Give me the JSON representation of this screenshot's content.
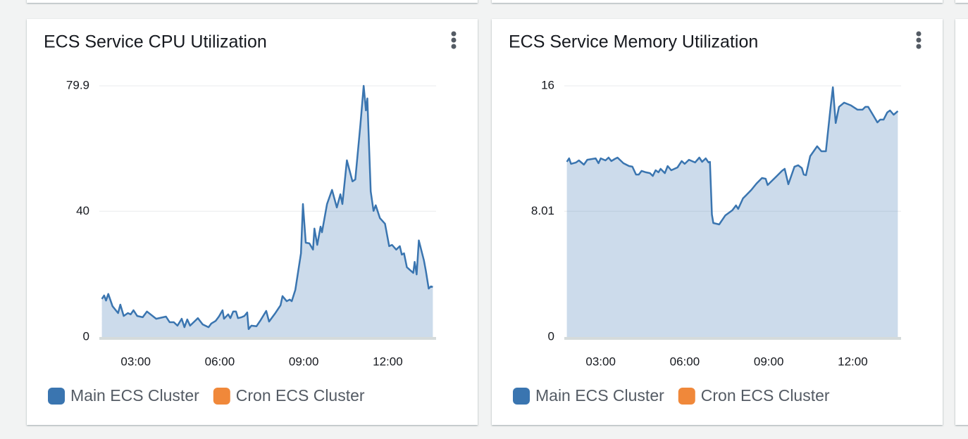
{
  "chart_data": [
    {
      "type": "area",
      "title": "ECS Service CPU Utilization",
      "xlim": [
        1.7,
        13.7
      ],
      "xticks": [
        {
          "value": 3,
          "label": "03:00"
        },
        {
          "value": 6,
          "label": "06:00"
        },
        {
          "value": 9,
          "label": "09:00"
        },
        {
          "value": 12,
          "label": "12:00"
        }
      ],
      "ylim": [
        0,
        79.9
      ],
      "yticks": [
        0,
        40,
        79.9
      ],
      "grid": true,
      "series": [
        {
          "name": "Main ECS Cluster",
          "color": "#3a75b0",
          "x": [
            1.79,
            1.87,
            1.94,
            2.02,
            2.17,
            2.37,
            2.45,
            2.57,
            2.72,
            2.82,
            2.92,
            3.05,
            3.25,
            3.4,
            3.73,
            4.08,
            4.21,
            4.36,
            4.49,
            4.64,
            4.74,
            4.84,
            4.94,
            5.09,
            5.22,
            5.39,
            5.6,
            5.7,
            5.85,
            5.97,
            6.1,
            6.15,
            6.3,
            6.38,
            6.48,
            6.58,
            6.65,
            6.78,
            6.88,
            6.98,
            7.03,
            7.13,
            7.31,
            7.46,
            7.66,
            7.76,
            7.97,
            8.17,
            8.24,
            8.39,
            8.5,
            8.57,
            8.7,
            8.9,
            8.97,
            9.07,
            9.2,
            9.33,
            9.38,
            9.48,
            9.6,
            9.65,
            9.83,
            10.01,
            10.18,
            10.31,
            10.38,
            10.54,
            10.74,
            10.84,
            11.02,
            11.14,
            11.22,
            11.27,
            11.39,
            11.49,
            11.57,
            11.72,
            11.9,
            12.05,
            12.15,
            12.3,
            12.43,
            12.5,
            12.58,
            12.68,
            12.91,
            12.96,
            13.03,
            13.11,
            13.29,
            13.36,
            13.46,
            13.54,
            13.61
          ],
          "values": [
            12.1,
            13.2,
            11.6,
            13.7,
            9.8,
            7.6,
            10.3,
            6.7,
            7.6,
            7.2,
            8.5,
            6.7,
            6.3,
            8.1,
            5.8,
            6.5,
            4.7,
            4.7,
            3.6,
            5.8,
            3.1,
            5.6,
            3.6,
            4.9,
            6.0,
            4.0,
            3.1,
            4.3,
            5.1,
            6.5,
            8.5,
            5.8,
            7.2,
            6.0,
            8.1,
            8.1,
            6.0,
            6.3,
            6.7,
            7.8,
            2.5,
            3.6,
            3.4,
            5.4,
            8.3,
            4.9,
            7.4,
            10.1,
            13.0,
            11.4,
            11.9,
            11.4,
            15.0,
            26.6,
            42.3,
            30.0,
            29.8,
            27.8,
            34.5,
            29.3,
            35.1,
            33.3,
            42.3,
            46.8,
            41.2,
            45.4,
            42.3,
            56.2,
            49.5,
            50.1,
            67.4,
            79.9,
            72.1,
            75.9,
            46.3,
            40.1,
            41.9,
            37.8,
            36.0,
            28.9,
            29.3,
            27.8,
            28.9,
            26.2,
            26.6,
            22.2,
            20.4,
            23.9,
            19.9,
            30.7,
            24.4,
            21.0,
            15.4,
            16.1,
            15.9
          ]
        },
        {
          "name": "Cron ECS Cluster",
          "color": "#f0883a",
          "x": [],
          "values": []
        }
      ]
    },
    {
      "type": "area",
      "title": "ECS Service Memory Utilization",
      "xlim": [
        1.7,
        13.7
      ],
      "xticks": [
        {
          "value": 3,
          "label": "03:00"
        },
        {
          "value": 6,
          "label": "06:00"
        },
        {
          "value": 9,
          "label": "09:00"
        },
        {
          "value": 12,
          "label": "12:00"
        }
      ],
      "ylim": [
        0,
        16
      ],
      "yticks": [
        0,
        8.01,
        16
      ],
      "grid": true,
      "series": [
        {
          "name": "Main ECS Cluster",
          "color": "#3a75b0",
          "x": [
            1.79,
            1.87,
            1.94,
            2.12,
            2.22,
            2.4,
            2.52,
            2.82,
            2.92,
            3.0,
            3.17,
            3.28,
            3.38,
            3.5,
            3.6,
            3.81,
            4.01,
            4.13,
            4.26,
            4.36,
            4.46,
            4.61,
            4.76,
            4.86,
            4.96,
            5.06,
            5.14,
            5.29,
            5.39,
            5.52,
            5.74,
            5.89,
            6.0,
            6.15,
            6.37,
            6.52,
            6.62,
            6.75,
            6.85,
            6.9,
            6.97,
            7.02,
            7.23,
            7.45,
            7.7,
            7.83,
            7.91,
            8.08,
            8.18,
            8.38,
            8.56,
            8.76,
            8.89,
            8.96,
            9.09,
            9.29,
            9.47,
            9.57,
            9.7,
            9.92,
            10.05,
            10.18,
            10.25,
            10.33,
            10.48,
            10.73,
            10.88,
            11.04,
            11.21,
            11.29,
            11.39,
            11.51,
            11.69,
            11.94,
            12.17,
            12.35,
            12.45,
            12.55,
            12.72,
            12.88,
            12.98,
            13.1,
            13.23,
            13.33,
            13.46,
            13.61
          ],
          "values": [
            11.16,
            11.38,
            11.03,
            11.12,
            11.25,
            10.98,
            11.29,
            11.38,
            11.07,
            11.38,
            11.25,
            11.43,
            11.21,
            11.34,
            11.43,
            11.07,
            10.89,
            10.85,
            10.35,
            10.35,
            10.58,
            10.49,
            10.44,
            10.26,
            10.62,
            10.49,
            10.71,
            10.44,
            10.89,
            10.62,
            10.8,
            11.21,
            11.03,
            11.29,
            11.12,
            11.43,
            11.16,
            11.38,
            11.12,
            11.16,
            7.8,
            7.26,
            7.17,
            7.75,
            8.07,
            8.38,
            8.16,
            8.83,
            9.01,
            9.37,
            9.77,
            10.13,
            10.08,
            9.68,
            9.91,
            10.26,
            10.58,
            10.71,
            9.73,
            10.85,
            10.94,
            10.76,
            10.35,
            10.31,
            11.52,
            12.15,
            11.83,
            11.83,
            14.66,
            15.91,
            13.63,
            14.66,
            14.93,
            14.75,
            14.48,
            14.48,
            14.66,
            14.66,
            14.16,
            13.67,
            13.85,
            13.85,
            14.3,
            14.43,
            14.16,
            14.39
          ]
        },
        {
          "name": "Cron ECS Cluster",
          "color": "#f0883a",
          "x": [],
          "values": []
        }
      ]
    }
  ]
}
